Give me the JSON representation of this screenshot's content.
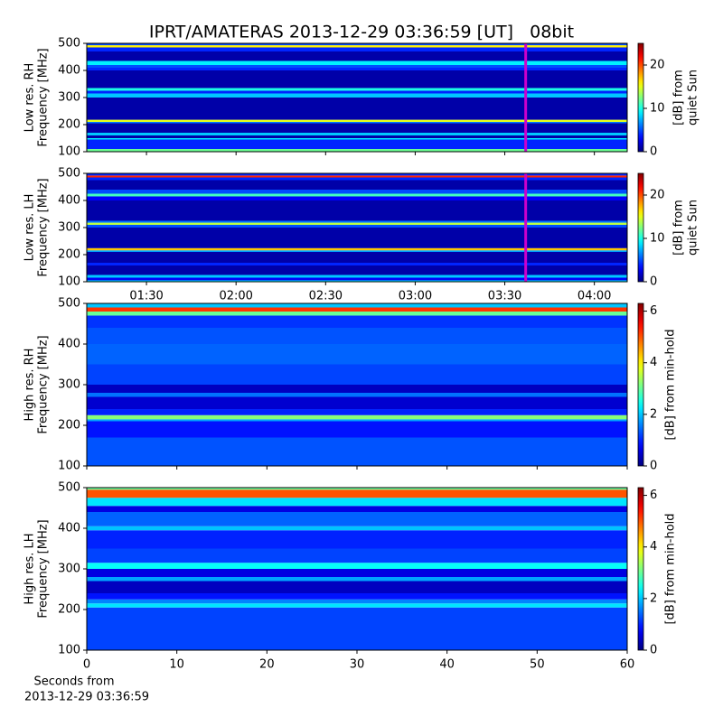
{
  "chart_data": [
    {
      "type": "heatmap",
      "title": "IPRT/AMATERAS 2013-12-29 03:36:59 [UT]   08bit",
      "ylabel": [
        "Low res. RH",
        "Frequency [MHz]"
      ],
      "xlim": [
        70,
        251
      ],
      "xticks": [
        90,
        120,
        150,
        180,
        210,
        240
      ],
      "ylim": [
        100,
        500
      ],
      "yticks": [
        100,
        200,
        300,
        400,
        500
      ],
      "ybins": [
        100,
        110,
        145,
        150,
        160,
        170,
        205,
        210,
        218,
        300,
        315,
        325,
        335,
        400,
        410,
        420,
        435,
        470,
        485,
        493,
        500
      ],
      "values": [
        12,
        4,
        9,
        1,
        8,
        1,
        6,
        15,
        1,
        8,
        4,
        10,
        1,
        4,
        5,
        9,
        1,
        4,
        16,
        5
      ],
      "vline": {
        "x": 217,
        "color": "#cc00cc"
      },
      "colorbar": {
        "cmap": "jet",
        "lim": [
          0,
          25
        ],
        "ticks": [
          0,
          10,
          20
        ],
        "label": [
          "[dB] from",
          "quiet Sun"
        ]
      }
    },
    {
      "type": "heatmap",
      "ylabel": [
        "Low res. LH",
        "Frequency [MHz]"
      ],
      "xlim": [
        70,
        251
      ],
      "xticks": [
        {
          "value": 90,
          "label": "01:30"
        },
        {
          "value": 120,
          "label": "02:00"
        },
        {
          "value": 150,
          "label": "02:30"
        },
        {
          "value": 180,
          "label": "03:00"
        },
        {
          "value": 210,
          "label": "03:30"
        },
        {
          "value": 240,
          "label": "04:00"
        }
      ],
      "ylim": [
        100,
        500
      ],
      "yticks": [
        100,
        200,
        300,
        400,
        500
      ],
      "ybins": [
        100,
        105,
        115,
        125,
        160,
        170,
        210,
        216,
        224,
        300,
        310,
        318,
        325,
        400,
        415,
        425,
        440,
        475,
        485,
        492,
        500
      ],
      "values": [
        9,
        3,
        8,
        1,
        4,
        1,
        7,
        17,
        1,
        5,
        14,
        6,
        1,
        3,
        11,
        5,
        1,
        4,
        21,
        4
      ],
      "vline": {
        "x": 217,
        "color": "#cc00cc"
      },
      "colorbar": {
        "cmap": "jet",
        "lim": [
          0,
          25
        ],
        "ticks": [
          0,
          10,
          20
        ],
        "label": [
          "[dB] from",
          "quiet Sun"
        ]
      }
    },
    {
      "type": "heatmap",
      "ylabel": [
        "High res. RH",
        "Frequency [MHz]"
      ],
      "xlim": [
        0,
        60
      ],
      "xticks": [
        0,
        10,
        20,
        30,
        40,
        50,
        60
      ],
      "ylim": [
        100,
        500
      ],
      "yticks": [
        100,
        200,
        300,
        400,
        500
      ],
      "ybins": [
        100,
        170,
        210,
        215,
        225,
        240,
        270,
        280,
        300,
        350,
        400,
        440,
        470,
        480,
        490,
        500
      ],
      "values": [
        1.3,
        0.9,
        1.8,
        3.2,
        1.0,
        0.5,
        1.5,
        0.4,
        1.2,
        1.4,
        1.3,
        1.1,
        3.0,
        5.2,
        2.0
      ],
      "colorbar": {
        "cmap": "jet",
        "lim": [
          0,
          6.3
        ],
        "ticks": [
          0,
          2,
          4,
          6
        ],
        "label": [
          "[dB] from min-hold"
        ]
      }
    },
    {
      "type": "heatmap",
      "ylabel": [
        "High res. LH",
        "Frequency [MHz]"
      ],
      "xlim": [
        0,
        60
      ],
      "xticks": [
        0,
        10,
        20,
        30,
        40,
        50,
        60
      ],
      "xticklabels": true,
      "xlabel": [
        "Seconds from",
        "2013-12-29 03:36:59"
      ],
      "ylim": [
        100,
        500
      ],
      "yticks": [
        100,
        200,
        300,
        400,
        500
      ],
      "ybins": [
        100,
        205,
        215,
        225,
        240,
        270,
        280,
        300,
        315,
        350,
        395,
        405,
        440,
        455,
        475,
        495,
        500
      ],
      "values": [
        1.2,
        2.2,
        1.6,
        0.9,
        0.4,
        1.8,
        0.6,
        2.4,
        1.2,
        1.0,
        2.0,
        1.4,
        0.6,
        2.2,
        5.0,
        3.0
      ],
      "colorbar": {
        "cmap": "jet",
        "lim": [
          0,
          6.3
        ],
        "ticks": [
          0,
          2,
          4,
          6
        ],
        "label": [
          "[dB] from min-hold"
        ]
      }
    }
  ]
}
